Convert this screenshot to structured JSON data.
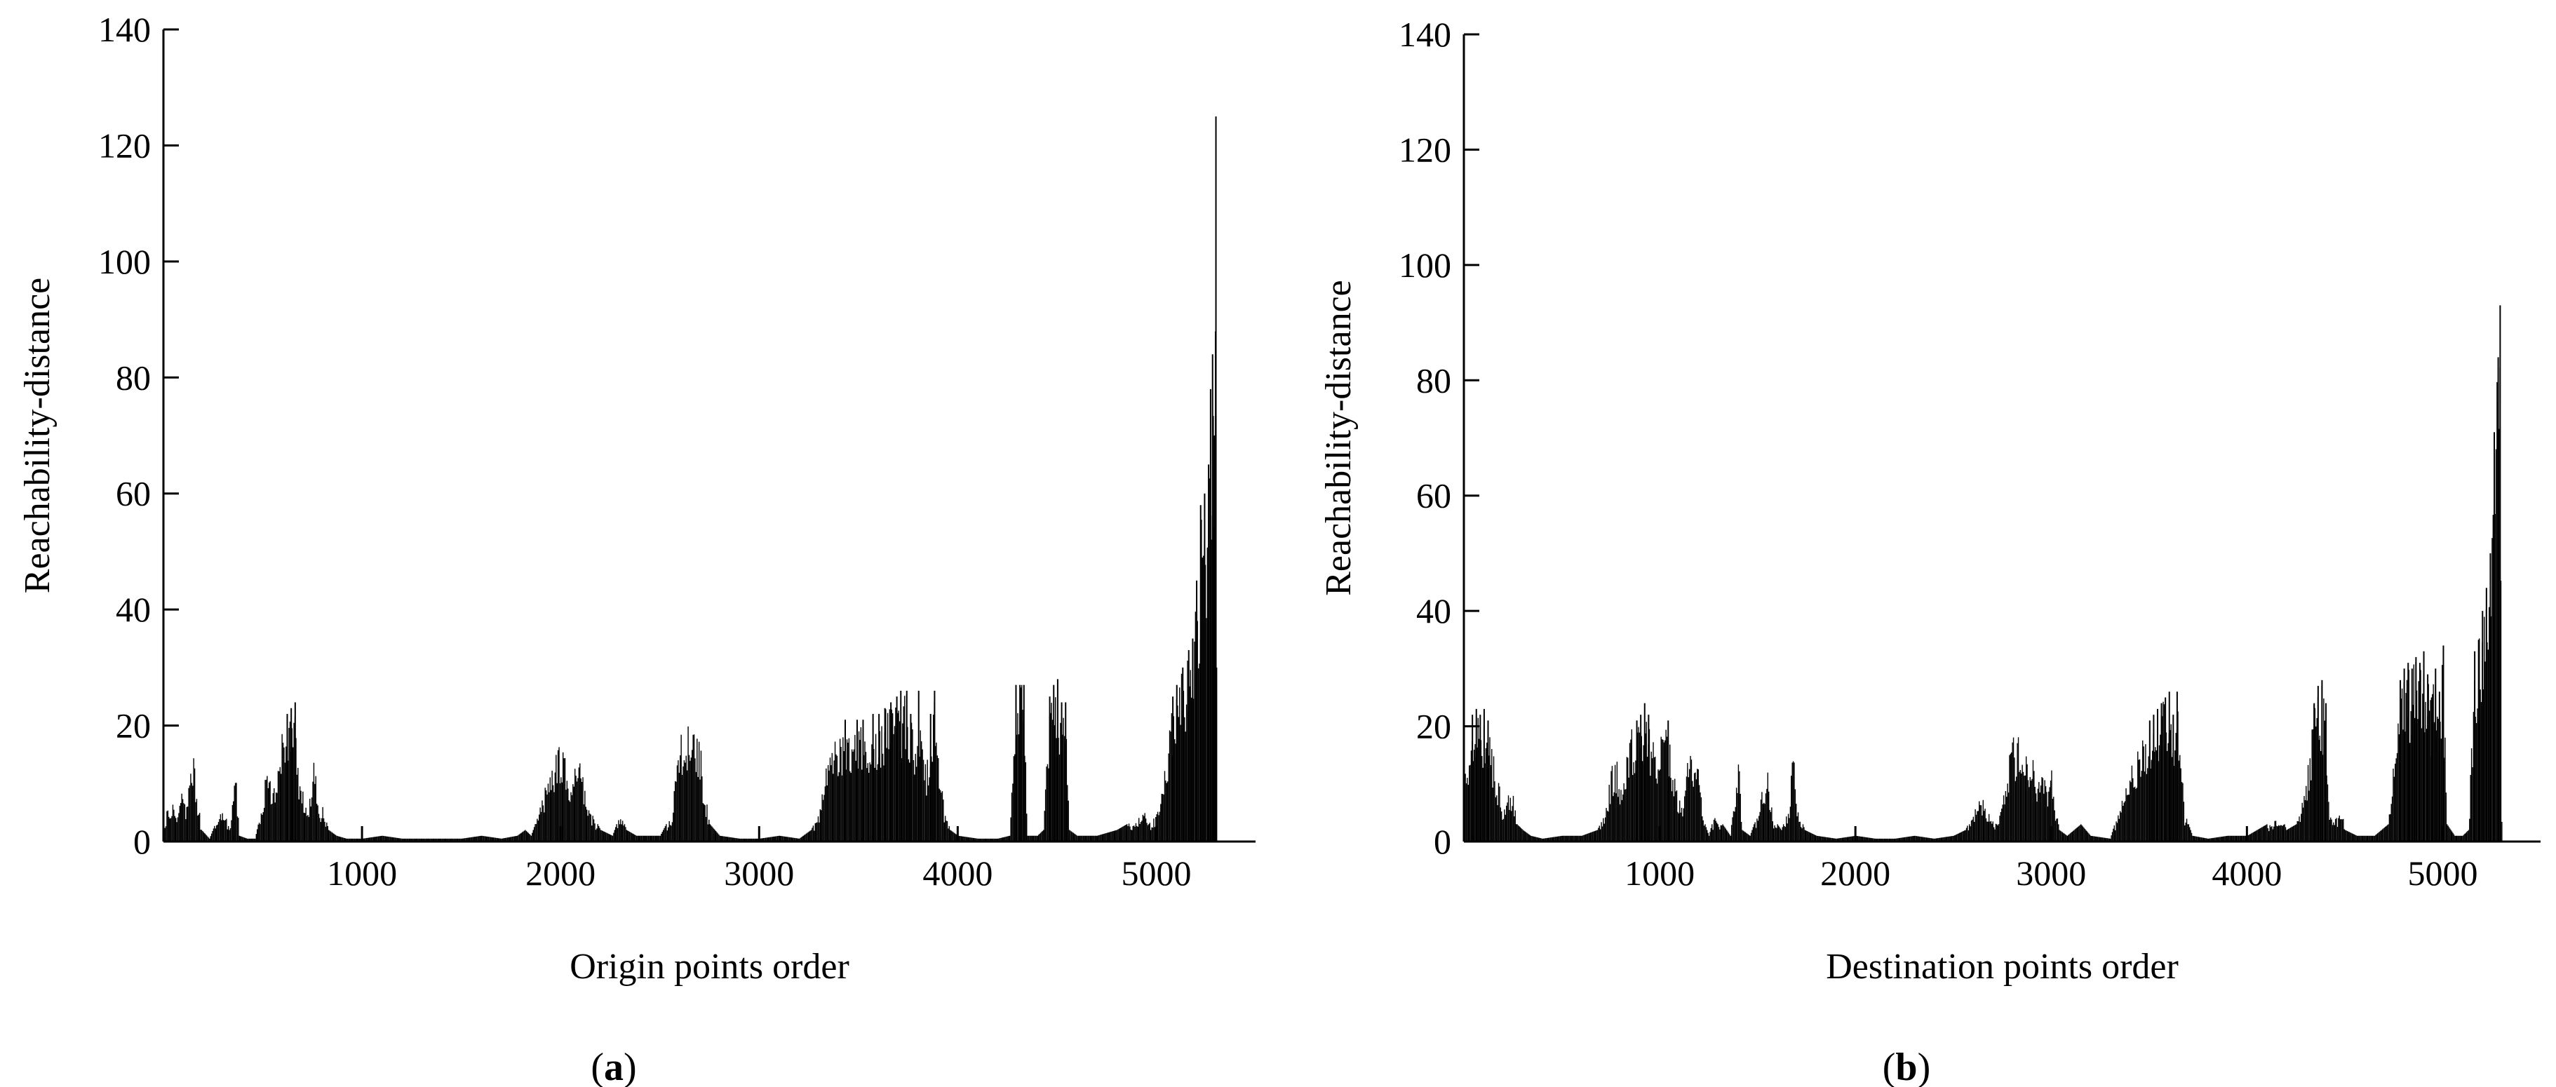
{
  "chart_data": [
    {
      "type": "bar",
      "panel_label": "a",
      "xlabel": "Origin points order",
      "ylabel": "Reachability-distance",
      "xlim": [
        0,
        5500
      ],
      "ylim": [
        0,
        140
      ],
      "xticks": [
        1000,
        2000,
        3000,
        4000,
        5000
      ],
      "yticks": [
        0,
        20,
        40,
        60,
        80,
        100,
        120,
        140
      ],
      "grid": false,
      "profile": [
        [
          0,
          0
        ],
        [
          15,
          7
        ],
        [
          30,
          4
        ],
        [
          50,
          8
        ],
        [
          70,
          5
        ],
        [
          90,
          9
        ],
        [
          110,
          6
        ],
        [
          130,
          12
        ],
        [
          150,
          15
        ],
        [
          170,
          8
        ],
        [
          190,
          2
        ],
        [
          230,
          0.5
        ],
        [
          270,
          4
        ],
        [
          300,
          6
        ],
        [
          330,
          2
        ],
        [
          360,
          14
        ],
        [
          380,
          1
        ],
        [
          420,
          0.5
        ],
        [
          460,
          0.5
        ],
        [
          500,
          7
        ],
        [
          520,
          15
        ],
        [
          540,
          9
        ],
        [
          560,
          12
        ],
        [
          580,
          17
        ],
        [
          600,
          20
        ],
        [
          620,
          22
        ],
        [
          640,
          23
        ],
        [
          660,
          24
        ],
        [
          675,
          14
        ],
        [
          700,
          9
        ],
        [
          730,
          6
        ],
        [
          760,
          16
        ],
        [
          780,
          5
        ],
        [
          800,
          6
        ],
        [
          830,
          2
        ],
        [
          870,
          1
        ],
        [
          920,
          0.5
        ],
        [
          1000,
          0.5
        ],
        [
          1100,
          1
        ],
        [
          1200,
          0.5
        ],
        [
          1300,
          0.5
        ],
        [
          1400,
          0.5
        ],
        [
          1500,
          0.5
        ],
        [
          1600,
          1
        ],
        [
          1700,
          0.5
        ],
        [
          1780,
          1
        ],
        [
          1820,
          2
        ],
        [
          1850,
          1
        ],
        [
          1880,
          4
        ],
        [
          1900,
          8
        ],
        [
          1930,
          10
        ],
        [
          1960,
          13
        ],
        [
          1990,
          17
        ],
        [
          2010,
          18
        ],
        [
          2030,
          12
        ],
        [
          2050,
          9
        ],
        [
          2070,
          15
        ],
        [
          2090,
          16
        ],
        [
          2110,
          12
        ],
        [
          2140,
          6
        ],
        [
          2170,
          4
        ],
        [
          2200,
          2
        ],
        [
          2260,
          1
        ],
        [
          2300,
          5
        ],
        [
          2330,
          2
        ],
        [
          2380,
          1
        ],
        [
          2440,
          1
        ],
        [
          2500,
          1
        ],
        [
          2560,
          5
        ],
        [
          2580,
          17
        ],
        [
          2600,
          19
        ],
        [
          2620,
          18
        ],
        [
          2640,
          20
        ],
        [
          2660,
          19
        ],
        [
          2680,
          20
        ],
        [
          2700,
          18
        ],
        [
          2720,
          10
        ],
        [
          2750,
          3
        ],
        [
          2800,
          1
        ],
        [
          2900,
          0.5
        ],
        [
          3000,
          0.5
        ],
        [
          3100,
          1
        ],
        [
          3200,
          0.5
        ],
        [
          3260,
          2
        ],
        [
          3300,
          5
        ],
        [
          3340,
          15
        ],
        [
          3370,
          18
        ],
        [
          3400,
          20
        ],
        [
          3430,
          21
        ],
        [
          3460,
          20
        ],
        [
          3490,
          21
        ],
        [
          3520,
          21
        ],
        [
          3540,
          15
        ],
        [
          3570,
          22
        ],
        [
          3600,
          22
        ],
        [
          3630,
          23
        ],
        [
          3660,
          24
        ],
        [
          3690,
          25
        ],
        [
          3710,
          26
        ],
        [
          3740,
          26
        ],
        [
          3760,
          22
        ],
        [
          3780,
          18
        ],
        [
          3800,
          26
        ],
        [
          3820,
          20
        ],
        [
          3840,
          12
        ],
        [
          3860,
          22
        ],
        [
          3880,
          26
        ],
        [
          3900,
          15
        ],
        [
          3930,
          6
        ],
        [
          3960,
          2
        ],
        [
          4000,
          1
        ],
        [
          4100,
          0.5
        ],
        [
          4200,
          0.5
        ],
        [
          4260,
          1
        ],
        [
          4290,
          27
        ],
        [
          4310,
          27
        ],
        [
          4330,
          27
        ],
        [
          4350,
          1
        ],
        [
          4400,
          1
        ],
        [
          4430,
          2
        ],
        [
          4460,
          25
        ],
        [
          4480,
          27
        ],
        [
          4500,
          28
        ],
        [
          4520,
          24
        ],
        [
          4540,
          24
        ],
        [
          4560,
          2
        ],
        [
          4600,
          1
        ],
        [
          4700,
          1
        ],
        [
          4800,
          2
        ],
        [
          4850,
          3
        ],
        [
          4900,
          4
        ],
        [
          4930,
          6
        ],
        [
          4960,
          3
        ],
        [
          5000,
          5
        ],
        [
          5030,
          10
        ],
        [
          5060,
          18
        ],
        [
          5080,
          25
        ],
        [
          5100,
          27
        ],
        [
          5130,
          30
        ],
        [
          5160,
          33
        ],
        [
          5180,
          35
        ],
        [
          5200,
          45
        ],
        [
          5220,
          58
        ],
        [
          5240,
          60
        ],
        [
          5260,
          65
        ],
        [
          5270,
          78
        ],
        [
          5280,
          84
        ],
        [
          5290,
          70
        ],
        [
          5297,
          125
        ],
        [
          5300,
          30
        ]
      ]
    },
    {
      "type": "bar",
      "panel_label": "b",
      "xlabel": "Destination points order",
      "ylabel": "Reachability-distance",
      "xlim": [
        0,
        5500
      ],
      "ylim": [
        0,
        140
      ],
      "xticks": [
        1000,
        2000,
        3000,
        4000,
        5000
      ],
      "yticks": [
        0,
        20,
        40,
        60,
        80,
        100,
        120,
        140
      ],
      "grid": false,
      "profile": [
        [
          0,
          15
        ],
        [
          20,
          16
        ],
        [
          40,
          22
        ],
        [
          60,
          23
        ],
        [
          80,
          22
        ],
        [
          100,
          23
        ],
        [
          120,
          21
        ],
        [
          140,
          18
        ],
        [
          160,
          12
        ],
        [
          180,
          10
        ],
        [
          200,
          5
        ],
        [
          220,
          8
        ],
        [
          250,
          9
        ],
        [
          270,
          3
        ],
        [
          300,
          2
        ],
        [
          340,
          1
        ],
        [
          400,
          0.5
        ],
        [
          500,
          1
        ],
        [
          600,
          1
        ],
        [
          680,
          2
        ],
        [
          720,
          5
        ],
        [
          750,
          13
        ],
        [
          780,
          14
        ],
        [
          800,
          10
        ],
        [
          820,
          15
        ],
        [
          840,
          18
        ],
        [
          860,
          20
        ],
        [
          880,
          21
        ],
        [
          900,
          22
        ],
        [
          920,
          24
        ],
        [
          940,
          22
        ],
        [
          960,
          18
        ],
        [
          980,
          15
        ],
        [
          1000,
          18
        ],
        [
          1020,
          20
        ],
        [
          1040,
          21
        ],
        [
          1060,
          15
        ],
        [
          1080,
          10
        ],
        [
          1100,
          8
        ],
        [
          1120,
          6
        ],
        [
          1140,
          14
        ],
        [
          1160,
          17
        ],
        [
          1180,
          16
        ],
        [
          1200,
          12
        ],
        [
          1220,
          4
        ],
        [
          1250,
          1
        ],
        [
          1280,
          5
        ],
        [
          1320,
          3
        ],
        [
          1360,
          1
        ],
        [
          1400,
          16
        ],
        [
          1420,
          2
        ],
        [
          1460,
          1
        ],
        [
          1500,
          5
        ],
        [
          1520,
          10
        ],
        [
          1550,
          12
        ],
        [
          1580,
          4
        ],
        [
          1620,
          2
        ],
        [
          1660,
          6
        ],
        [
          1680,
          18
        ],
        [
          1700,
          6
        ],
        [
          1740,
          2
        ],
        [
          1800,
          1
        ],
        [
          1900,
          0.5
        ],
        [
          2000,
          1
        ],
        [
          2100,
          0.5
        ],
        [
          2200,
          0.5
        ],
        [
          2300,
          1
        ],
        [
          2400,
          0.5
        ],
        [
          2500,
          1
        ],
        [
          2560,
          2
        ],
        [
          2600,
          5
        ],
        [
          2640,
          8
        ],
        [
          2680,
          5
        ],
        [
          2720,
          3
        ],
        [
          2760,
          10
        ],
        [
          2780,
          15
        ],
        [
          2800,
          18
        ],
        [
          2820,
          19
        ],
        [
          2840,
          18
        ],
        [
          2860,
          20
        ],
        [
          2880,
          16
        ],
        [
          2900,
          15
        ],
        [
          2920,
          12
        ],
        [
          2940,
          10
        ],
        [
          2960,
          13
        ],
        [
          2980,
          9
        ],
        [
          3000,
          13
        ],
        [
          3020,
          6
        ],
        [
          3040,
          2
        ],
        [
          3080,
          1
        ],
        [
          3150,
          3
        ],
        [
          3200,
          1
        ],
        [
          3300,
          0.5
        ],
        [
          3400,
          12
        ],
        [
          3420,
          15
        ],
        [
          3440,
          17
        ],
        [
          3460,
          18
        ],
        [
          3480,
          20
        ],
        [
          3500,
          21
        ],
        [
          3520,
          22
        ],
        [
          3540,
          23
        ],
        [
          3560,
          24
        ],
        [
          3580,
          25
        ],
        [
          3600,
          26
        ],
        [
          3620,
          22
        ],
        [
          3640,
          26
        ],
        [
          3660,
          20
        ],
        [
          3680,
          5
        ],
        [
          3720,
          1
        ],
        [
          3800,
          0.5
        ],
        [
          3900,
          1
        ],
        [
          4000,
          1
        ],
        [
          4050,
          2
        ],
        [
          4100,
          3
        ],
        [
          4150,
          4
        ],
        [
          4180,
          4
        ],
        [
          4200,
          2
        ],
        [
          4250,
          3
        ],
        [
          4300,
          10
        ],
        [
          4340,
          24
        ],
        [
          4360,
          27
        ],
        [
          4380,
          28
        ],
        [
          4400,
          24
        ],
        [
          4420,
          5
        ],
        [
          4460,
          4
        ],
        [
          4480,
          7
        ],
        [
          4500,
          2
        ],
        [
          4560,
          1
        ],
        [
          4650,
          1
        ],
        [
          4720,
          3
        ],
        [
          4760,
          20
        ],
        [
          4780,
          28
        ],
        [
          4800,
          30
        ],
        [
          4820,
          31
        ],
        [
          4840,
          30
        ],
        [
          4860,
          32
        ],
        [
          4880,
          31
        ],
        [
          4900,
          33
        ],
        [
          4920,
          29
        ],
        [
          4940,
          25
        ],
        [
          4960,
          30
        ],
        [
          4980,
          26
        ],
        [
          5000,
          34
        ],
        [
          5020,
          3
        ],
        [
          5060,
          1
        ],
        [
          5100,
          1
        ],
        [
          5130,
          2
        ],
        [
          5160,
          33
        ],
        [
          5180,
          35
        ],
        [
          5200,
          40
        ],
        [
          5220,
          44
        ],
        [
          5240,
          50
        ],
        [
          5260,
          71
        ],
        [
          5280,
          84
        ],
        [
          5290,
          93
        ],
        [
          5300,
          5
        ]
      ]
    }
  ]
}
